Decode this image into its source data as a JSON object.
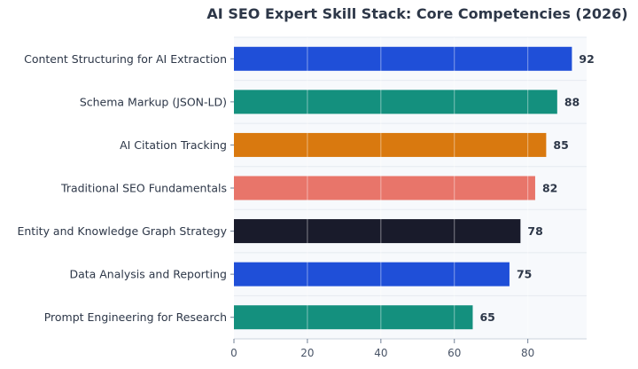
{
  "chart_data": {
    "type": "bar",
    "orientation": "horizontal",
    "title": "AI SEO Expert Skill Stack: Core Competencies (2026)",
    "xlabel": "",
    "ylabel": "",
    "categories": [
      "Content Structuring for AI Extraction",
      "Schema Markup (JSON-LD)",
      "AI Citation Tracking",
      "Traditional SEO Fundamentals",
      "Entity and Knowledge Graph Strategy",
      "Data Analysis and Reporting",
      "Prompt Engineering for Research"
    ],
    "values": [
      92,
      88,
      85,
      82,
      78,
      75,
      65
    ],
    "colors": [
      "#1f4fd8",
      "#14907e",
      "#d9790f",
      "#e8756a",
      "#191b2b",
      "#1f4fd8",
      "#14907e"
    ],
    "xlim": [
      0,
      96
    ],
    "xticks": [
      0,
      20,
      40,
      60,
      80
    ],
    "grid": true,
    "plot_background": "#f7f9fc"
  }
}
